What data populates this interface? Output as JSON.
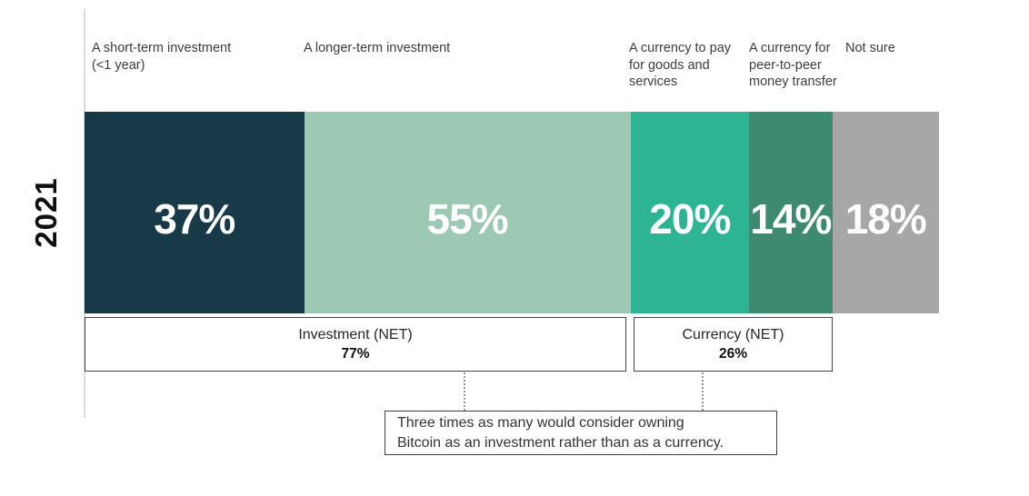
{
  "chart_data": {
    "type": "bar",
    "orientation": "horizontal-stacked",
    "title": "",
    "row_label": "2021",
    "categories": [
      "A short-term investment (<1 year)",
      "A longer-term investment",
      "A currency to pay for goods and services",
      "A currency for peer-to-peer money transfer",
      "Not sure"
    ],
    "values": [
      37,
      55,
      20,
      14,
      18
    ],
    "segments": [
      {
        "label": "A short-term investment (<1 year)",
        "value": 37,
        "display": "37%",
        "color": "#173948",
        "text_color": "#ffffff"
      },
      {
        "label": "A longer-term investment",
        "value": 55,
        "display": "55%",
        "color": "#9cc8b4",
        "text_color": "#ffffff"
      },
      {
        "label": "A currency to pay for goods and services",
        "value": 20,
        "display": "20%",
        "color": "#2db493",
        "text_color": "#ffffff"
      },
      {
        "label": "A currency for peer-to-peer money transfer",
        "value": 14,
        "display": "14%",
        "color": "#3e8a71",
        "text_color": "#ffffff"
      },
      {
        "label": "Not sure",
        "value": 18,
        "display": "18%",
        "color": "#a8a7a7",
        "text_color": "#ffffff"
      }
    ],
    "nets": [
      {
        "label": "Investment (NET)",
        "value": "77%"
      },
      {
        "label": "Currency (NET)",
        "value": "26%"
      }
    ],
    "annotation": {
      "line1": "Three times as many would consider owning",
      "line2": "Bitcoin as an investment rather than as a currency."
    },
    "axis_line_color": "#dcdcdc",
    "grid": false,
    "legend_position": "top"
  }
}
